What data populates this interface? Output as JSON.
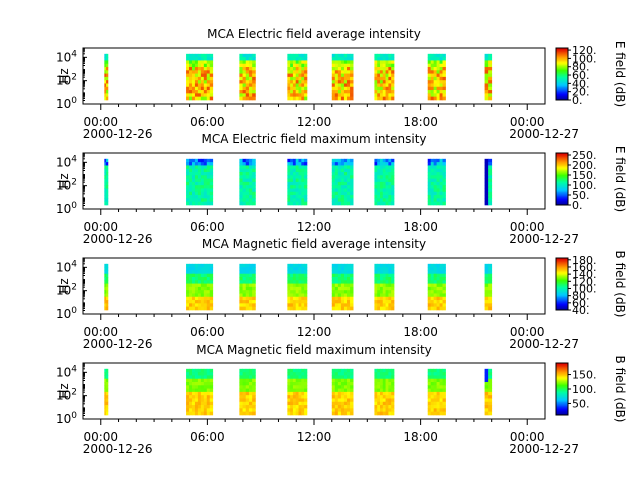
{
  "chart_data": [
    {
      "type": "heatmap",
      "title": "MCA  Electric field average intensity",
      "ylabel": "Hz",
      "cbar_label": "E field (dB)",
      "cbar_ticks": [
        "0.",
        "20.",
        "40.",
        "60.",
        "80.",
        "100.",
        "120."
      ],
      "cbar_range": [
        0,
        125
      ],
      "ystyle": "avgE",
      "time_blocks_hours": [
        [
          0.2,
          0.4
        ],
        [
          4.8,
          6.3
        ],
        [
          7.8,
          8.7
        ],
        [
          10.5,
          11.6
        ],
        [
          13.0,
          14.2
        ],
        [
          15.4,
          16.5
        ],
        [
          18.4,
          19.4
        ],
        [
          21.6,
          22.0
        ]
      ],
      "x_ticks": [
        "00:00",
        "06:00",
        "12:00",
        "18:00",
        "00:00"
      ],
      "x_date_start": "2000-12-26",
      "x_date_end": "2000-12-27"
    },
    {
      "type": "heatmap",
      "title": "MCA  Electric field maximum intensity",
      "ylabel": "Hz",
      "cbar_label": "E field (dB)",
      "cbar_ticks": [
        "0.",
        "50.",
        "100.",
        "150.",
        "200.",
        "250."
      ],
      "cbar_range": [
        0,
        260
      ],
      "ystyle": "maxE",
      "time_blocks_hours": [
        [
          0.2,
          0.4
        ],
        [
          4.8,
          6.3
        ],
        [
          7.8,
          8.7
        ],
        [
          10.5,
          11.6
        ],
        [
          13.0,
          14.2
        ],
        [
          15.4,
          16.5
        ],
        [
          18.4,
          19.4
        ],
        [
          21.6,
          22.0
        ]
      ],
      "x_ticks": [
        "00:00",
        "06:00",
        "12:00",
        "18:00",
        "00:00"
      ],
      "x_date_start": "2000-12-26",
      "x_date_end": "2000-12-27"
    },
    {
      "type": "heatmap",
      "title": "MCA  Magnetic field average intensity",
      "ylabel": "Hz",
      "cbar_label": "B field (dB)",
      "cbar_ticks": [
        "40.",
        "60.",
        "80.",
        "100.",
        "120.",
        "140.",
        "160.",
        "180."
      ],
      "cbar_range": [
        40,
        185
      ],
      "ystyle": "avgB",
      "time_blocks_hours": [
        [
          0.2,
          0.4
        ],
        [
          4.8,
          6.3
        ],
        [
          7.8,
          8.7
        ],
        [
          10.5,
          11.6
        ],
        [
          13.0,
          14.2
        ],
        [
          15.4,
          16.5
        ],
        [
          18.4,
          19.4
        ],
        [
          21.6,
          22.0
        ]
      ],
      "x_ticks": [
        "00:00",
        "06:00",
        "12:00",
        "18:00",
        "00:00"
      ],
      "x_date_start": "2000-12-26",
      "x_date_end": "2000-12-27"
    },
    {
      "type": "heatmap",
      "title": "MCA  Magnetic field maximum intensity",
      "ylabel": "Hz",
      "cbar_label": "B field (dB)",
      "cbar_ticks": [
        "50.",
        "100.",
        "150."
      ],
      "cbar_range": [
        10,
        190
      ],
      "ystyle": "maxB",
      "time_blocks_hours": [
        [
          0.2,
          0.4
        ],
        [
          4.8,
          6.3
        ],
        [
          7.8,
          8.7
        ],
        [
          10.5,
          11.6
        ],
        [
          13.0,
          14.2
        ],
        [
          15.4,
          16.5
        ],
        [
          18.4,
          19.4
        ],
        [
          21.6,
          22.0
        ]
      ],
      "x_ticks": [
        "00:00",
        "06:00",
        "12:00",
        "18:00",
        "00:00"
      ],
      "x_date_start": "2000-12-26",
      "x_date_end": "2000-12-27"
    }
  ],
  "y_ticks": [
    {
      "base": "10",
      "exp": "0"
    },
    {
      "base": "10",
      "exp": "2"
    },
    {
      "base": "10",
      "exp": "4"
    }
  ],
  "x_range_hours": [
    -1,
    25
  ],
  "y_range_log10": [
    0,
    4.8
  ]
}
